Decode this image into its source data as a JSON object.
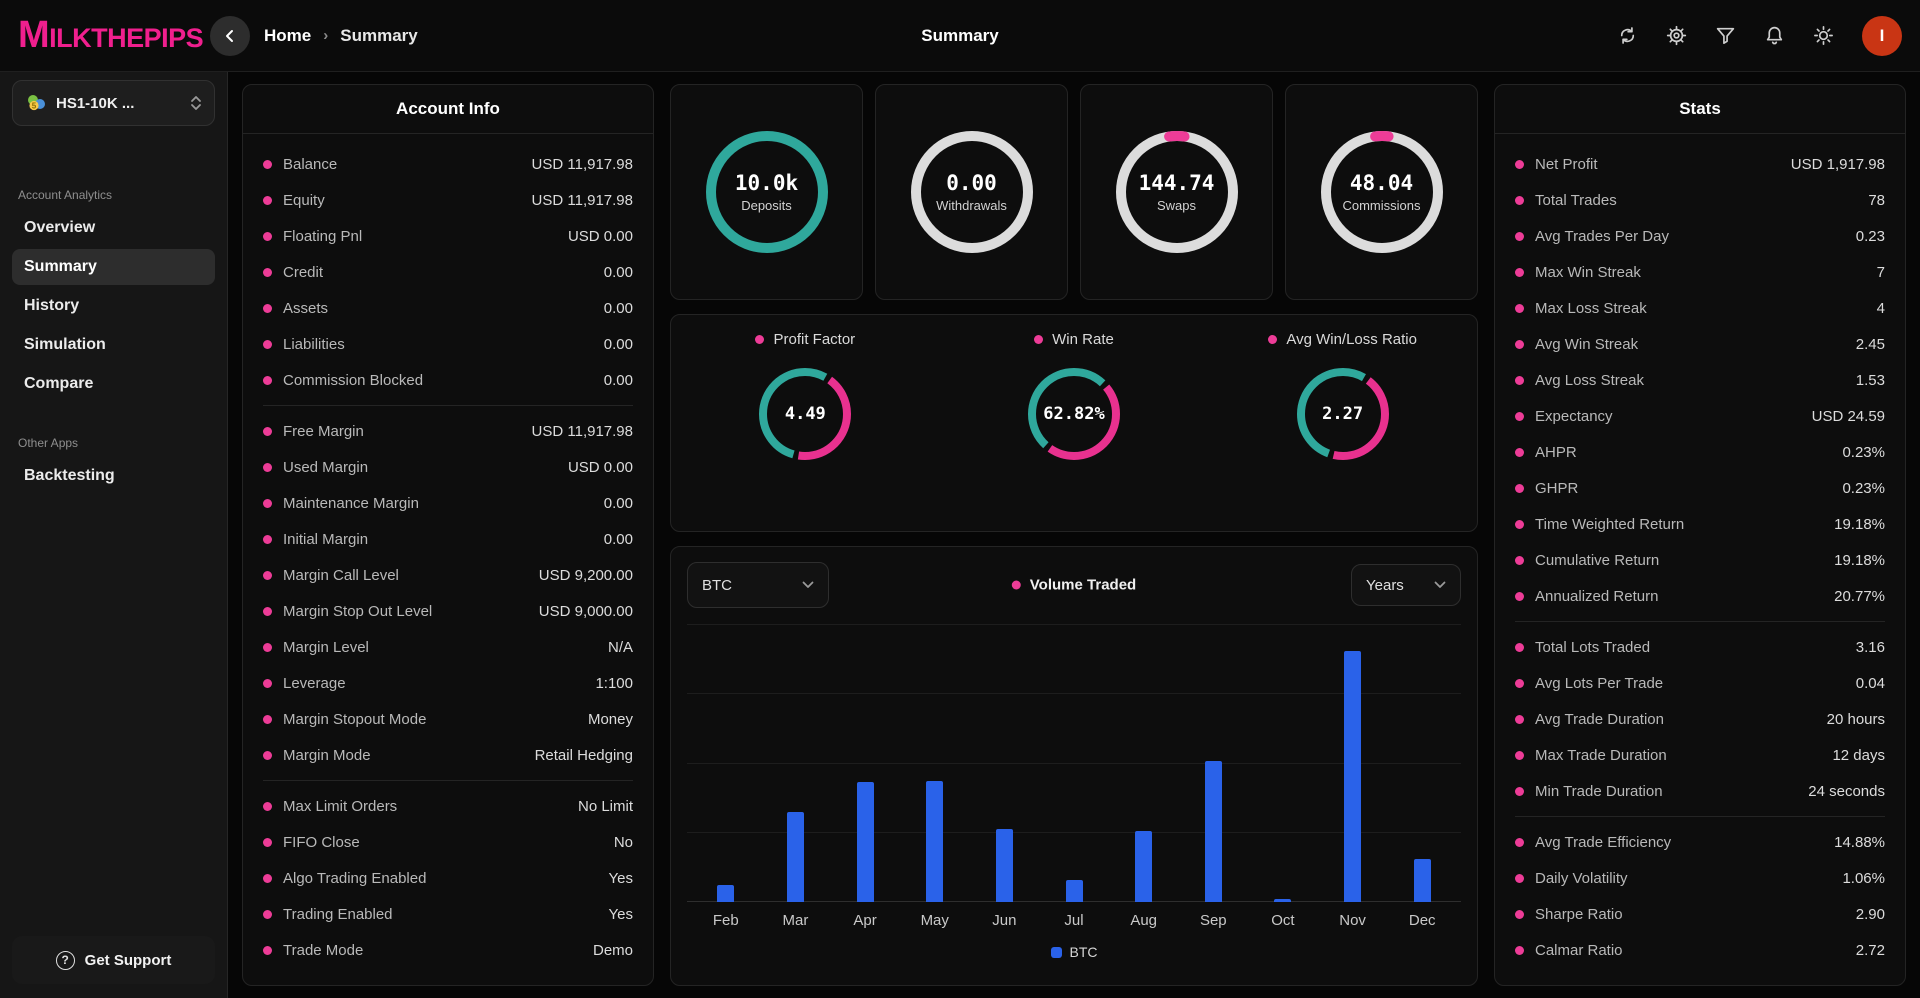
{
  "topbar": {
    "logo_text": "MILKTHEPIPS",
    "breadcrumb": {
      "home": "Home",
      "separator": "›",
      "current": "Summary"
    },
    "title": "Summary",
    "icons": [
      "refresh-icon",
      "settings-icon",
      "filter-icon",
      "notifications-icon",
      "theme-icon"
    ],
    "avatar_text": "I"
  },
  "sidebar": {
    "account_selector": {
      "label": "HS1-10K ...",
      "icon": "mt5-account-icon"
    },
    "sections": [
      {
        "label": "Account Analytics",
        "items": [
          {
            "label": "Overview",
            "active": false
          },
          {
            "label": "Summary",
            "active": true
          },
          {
            "label": "History",
            "active": false
          },
          {
            "label": "Simulation",
            "active": false
          },
          {
            "label": "Compare",
            "active": false
          }
        ]
      },
      {
        "label": "Other Apps",
        "items": [
          {
            "label": "Backtesting",
            "active": false
          }
        ]
      }
    ],
    "support": {
      "label": "Get Support"
    }
  },
  "account_info": {
    "title": "Account Info",
    "rows": [
      {
        "label": "Balance",
        "value": "USD 11,917.98"
      },
      {
        "label": "Equity",
        "value": "USD 11,917.98"
      },
      {
        "label": "Floating Pnl",
        "value": "USD 0.00"
      },
      {
        "label": "Credit",
        "value": "0.00"
      },
      {
        "label": "Assets",
        "value": "0.00"
      },
      {
        "label": "Liabilities",
        "value": "0.00"
      },
      {
        "label": "Commission Blocked",
        "value": "0.00",
        "divider": true
      },
      {
        "label": "Free Margin",
        "value": "USD 11,917.98"
      },
      {
        "label": "Used Margin",
        "value": "USD 0.00"
      },
      {
        "label": "Maintenance Margin",
        "value": "0.00"
      },
      {
        "label": "Initial Margin",
        "value": "0.00"
      },
      {
        "label": "Margin Call Level",
        "value": "USD 9,200.00"
      },
      {
        "label": "Margin Stop Out Level",
        "value": "USD 9,000.00"
      },
      {
        "label": "Margin Level",
        "value": "N/A"
      },
      {
        "label": "Leverage",
        "value": "1:100"
      },
      {
        "label": "Margin Stopout Mode",
        "value": "Money"
      },
      {
        "label": "Margin Mode",
        "value": "Retail Hedging",
        "divider": true
      },
      {
        "label": "Max Limit Orders",
        "value": "No Limit"
      },
      {
        "label": "FIFO Close",
        "value": "No"
      },
      {
        "label": "Algo Trading Enabled",
        "value": "Yes"
      },
      {
        "label": "Trading Enabled",
        "value": "Yes"
      },
      {
        "label": "Trade Mode",
        "value": "Demo"
      }
    ]
  },
  "stats": {
    "title": "Stats",
    "rows": [
      {
        "label": "Net Profit",
        "value": "USD 1,917.98"
      },
      {
        "label": "Total Trades",
        "value": "78"
      },
      {
        "label": "Avg Trades Per Day",
        "value": "0.23"
      },
      {
        "label": "Max Win Streak",
        "value": "7"
      },
      {
        "label": "Max Loss Streak",
        "value": "4"
      },
      {
        "label": "Avg Win Streak",
        "value": "2.45"
      },
      {
        "label": "Avg Loss Streak",
        "value": "1.53"
      },
      {
        "label": "Expectancy",
        "value": "USD 24.59"
      },
      {
        "label": "AHPR",
        "value": "0.23%"
      },
      {
        "label": "GHPR",
        "value": "0.23%"
      },
      {
        "label": "Time Weighted Return",
        "value": "19.18%"
      },
      {
        "label": "Cumulative Return",
        "value": "19.18%"
      },
      {
        "label": "Annualized Return",
        "value": "20.77%",
        "divider": true
      },
      {
        "label": "Total Lots Traded",
        "value": "3.16"
      },
      {
        "label": "Avg Lots Per Trade",
        "value": "0.04"
      },
      {
        "label": "Avg Trade Duration",
        "value": "20 hours"
      },
      {
        "label": "Max Trade Duration",
        "value": "12 days"
      },
      {
        "label": "Min Trade Duration",
        "value": "24 seconds",
        "divider": true
      },
      {
        "label": "Avg Trade Efficiency",
        "value": "14.88%"
      },
      {
        "label": "Daily Volatility",
        "value": "1.06%"
      },
      {
        "label": "Sharpe Ratio",
        "value": "2.90"
      },
      {
        "label": "Calmar Ratio",
        "value": "2.72"
      }
    ]
  },
  "ring_cards": [
    {
      "value": "10.0k",
      "label": "Deposits",
      "ring_color": "#2fa89c",
      "accent_color": null,
      "accent_deg": 0
    },
    {
      "value": "0.00",
      "label": "Withdrawals",
      "ring_color": "#dcdcdc",
      "accent_color": null,
      "accent_deg": 0
    },
    {
      "value": "144.74",
      "label": "Swaps",
      "ring_color": "#dcdcdc",
      "accent_color": "#ed3c97",
      "accent_deg": 16
    },
    {
      "value": "48.04",
      "label": "Commissions",
      "ring_color": "#dcdcdc",
      "accent_color": "#ed3c97",
      "accent_deg": 14
    }
  ],
  "gauges": [
    {
      "label": "Profit Factor",
      "value": "4.49",
      "segments": [
        {
          "color": "#2fa89c",
          "start": 196,
          "end": 389
        },
        {
          "color": "#e8318f",
          "start": 36,
          "end": 189
        }
      ]
    },
    {
      "label": "Win Rate",
      "value": "62.82%",
      "segments": [
        {
          "color": "#2fa89c",
          "start": 222,
          "end": 403
        },
        {
          "color": "#e8318f",
          "start": 50,
          "end": 215
        }
      ]
    },
    {
      "label": "Avg Win/Loss Ratio",
      "value": "2.27",
      "segments": [
        {
          "color": "#2fa89c",
          "start": 200,
          "end": 390
        },
        {
          "color": "#e8318f",
          "start": 37,
          "end": 193
        }
      ]
    }
  ],
  "volume_card": {
    "symbol_select": "BTC",
    "period_select": "Years",
    "title": "Volume Traded",
    "legend": "BTC"
  },
  "chart_data": {
    "type": "bar",
    "title": "Volume Traded",
    "categories": [
      "Feb",
      "Mar",
      "Apr",
      "May",
      "Jun",
      "Jul",
      "Aug",
      "Sep",
      "Oct",
      "Nov",
      "Dec"
    ],
    "series": [
      {
        "name": "BTC",
        "values": [
          0.24,
          1.3,
          1.74,
          1.75,
          1.05,
          0.32,
          1.02,
          2.04,
          0.04,
          3.62,
          0.62
        ]
      }
    ],
    "ylim": [
      0,
      4
    ],
    "grid": true,
    "legend_position": "bottom",
    "series_color": "#2a62e9"
  },
  "colors": {
    "accent_pink": "#ed3c97",
    "teal": "#2fa89c",
    "ring_gray": "#dcdcdc",
    "bar_blue": "#2a62e9",
    "avatar_orange": "#c93514"
  }
}
